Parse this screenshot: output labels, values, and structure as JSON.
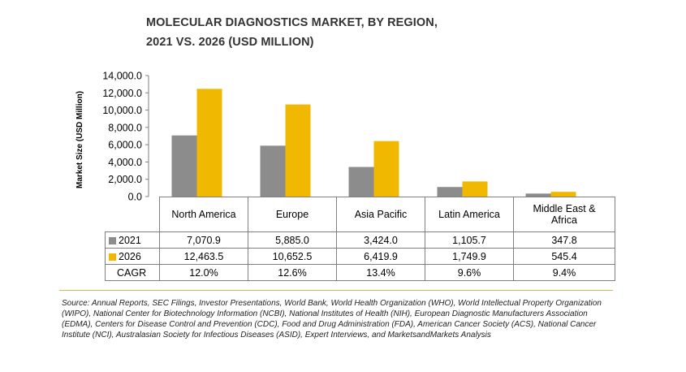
{
  "title_line1": "MOLECULAR DIAGNOSTICS MARKET, BY REGION,",
  "title_line2": "2021 VS. 2026 (USD MILLION)",
  "colors": {
    "s2021": "#8c8c8c",
    "s2026": "#f0b800"
  },
  "chart_data": {
    "type": "bar",
    "title": "MOLECULAR DIAGNOSTICS MARKET, BY REGION, 2021 VS. 2026 (USD MILLION)",
    "categories": [
      "North America",
      "Europe",
      "Asia Pacific",
      "Latin America",
      "Middle East & Africa"
    ],
    "series": [
      {
        "name": "2021",
        "values": [
          7070.9,
          5885.0,
          3424.0,
          1105.7,
          347.8
        ],
        "labels": [
          "7,070.9",
          "5,885.0",
          "3,424.0",
          "1,105.7",
          "347.8"
        ]
      },
      {
        "name": "2026",
        "values": [
          12463.5,
          10652.5,
          6419.9,
          1749.9,
          545.4
        ],
        "labels": [
          "12,463.5",
          "10,652.5",
          "6,419.9",
          "1,749.9",
          "545.4"
        ]
      }
    ],
    "cagr_label": "CAGR",
    "cagr": [
      "12.0%",
      "12.6%",
      "13.4%",
      "9.6%",
      "9.4%"
    ],
    "ylabel": "Market Size (USD Million)",
    "xlabel": "",
    "ylim": [
      0,
      14000
    ],
    "yticks": [
      "0.0",
      "2,000.0",
      "4,000.0",
      "6,000.0",
      "8,000.0",
      "10,000.0",
      "12,000.0",
      "14,000.0"
    ],
    "grid": false
  },
  "source": "Source: Annual Reports, SEC Filings, Investor Presentations, World Bank, World Health Organization (WHO), World Intellectual Property Organization (WIPO), National Center for Biotechnology Information (NCBI), National Institutes of Health (NIH), European Diagnostic Manufacturers Association (EDMA), Centers for Disease Control and Prevention (CDC), Food and Drug Administration (FDA), American Cancer Society (ACS), National Cancer Institute (NCI), Australasian Society for Infectious Diseases (ASID), Expert Interviews, and MarketsandMarkets Analysis"
}
